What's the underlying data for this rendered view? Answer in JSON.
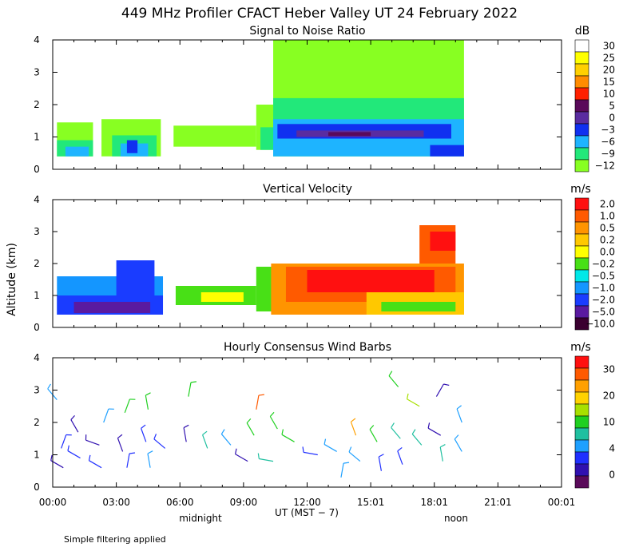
{
  "figure": {
    "title": "449 MHz Profiler CFACT Heber Valley UT 24 February 2022",
    "ylabel": "Altitude (km)",
    "xlabel": "UT  (MST − 7)",
    "midnight_label": "midnight",
    "noon_label": "noon",
    "footnote": "Simple filtering applied"
  },
  "chart_data": [
    {
      "type": "heatmap",
      "title": "Signal to Noise Ratio",
      "units": "dB",
      "x_ticks": [
        "00:00",
        "03:00",
        "06:00",
        "09:00",
        "12:00",
        "15:01",
        "18:01",
        "21:01",
        "00:01"
      ],
      "y_ticks": [
        "0",
        "1",
        "2",
        "3",
        "4"
      ],
      "ylim": [
        0,
        4
      ],
      "xlim_hours": [
        0,
        24
      ],
      "colorbar": {
        "labels": [
          "30",
          "25",
          "20",
          "15",
          "10",
          "5",
          "0",
          "−3",
          "−6",
          "−9",
          "−12"
        ],
        "colors": [
          "#ffffff",
          "#ffff00",
          "#ffd000",
          "#ff8c00",
          "#ff2000",
          "#5a0a5a",
          "#5a2ca0",
          "#1030f0",
          "#1eb4ff",
          "#22e87a",
          "#88ff22"
        ]
      },
      "blocks": [
        {
          "t0": 0.2,
          "t1": 1.9,
          "z0": 0.4,
          "z1": 1.45,
          "c": "#88ff22"
        },
        {
          "t0": 0.2,
          "t1": 1.9,
          "z0": 0.4,
          "z1": 0.9,
          "c": "#22e87a"
        },
        {
          "t0": 0.6,
          "t1": 1.7,
          "z0": 0.4,
          "z1": 0.7,
          "c": "#1eb4ff"
        },
        {
          "t0": 2.3,
          "t1": 5.1,
          "z0": 0.4,
          "z1": 1.55,
          "c": "#88ff22"
        },
        {
          "t0": 2.8,
          "t1": 4.9,
          "z0": 0.4,
          "z1": 1.05,
          "c": "#22e87a"
        },
        {
          "t0": 3.2,
          "t1": 4.5,
          "z0": 0.4,
          "z1": 0.8,
          "c": "#1eb4ff"
        },
        {
          "t0": 3.5,
          "t1": 4.0,
          "z0": 0.5,
          "z1": 0.9,
          "c": "#1030f0"
        },
        {
          "t0": 5.7,
          "t1": 9.6,
          "z0": 0.7,
          "z1": 1.35,
          "c": "#88ff22"
        },
        {
          "t0": 9.6,
          "t1": 10.4,
          "z0": 0.6,
          "z1": 2.0,
          "c": "#88ff22"
        },
        {
          "t0": 9.8,
          "t1": 10.4,
          "z0": 0.6,
          "z1": 1.3,
          "c": "#22e87a"
        },
        {
          "t0": 10.4,
          "t1": 19.4,
          "z0": 0.4,
          "z1": 4.0,
          "c": "#88ff22"
        },
        {
          "t0": 10.4,
          "t1": 19.4,
          "z0": 0.4,
          "z1": 2.2,
          "c": "#22e87a"
        },
        {
          "t0": 10.4,
          "t1": 19.4,
          "z0": 0.4,
          "z1": 1.55,
          "c": "#1eb4ff"
        },
        {
          "t0": 10.6,
          "t1": 18.8,
          "z0": 0.95,
          "z1": 1.4,
          "c": "#1030f0"
        },
        {
          "t0": 11.5,
          "t1": 17.5,
          "z0": 1.0,
          "z1": 1.2,
          "c": "#5a2ca0"
        },
        {
          "t0": 13.0,
          "t1": 15.0,
          "z0": 1.03,
          "z1": 1.15,
          "c": "#5a0a5a"
        },
        {
          "t0": 17.8,
          "t1": 19.4,
          "z0": 0.4,
          "z1": 0.75,
          "c": "#1030f0"
        }
      ]
    },
    {
      "type": "heatmap",
      "title": "Vertical Velocity",
      "units": "m/s",
      "x_ticks": [
        "00:00",
        "03:00",
        "06:00",
        "09:00",
        "12:00",
        "15:01",
        "18:01",
        "21:01",
        "00:01"
      ],
      "y_ticks": [
        "0",
        "1",
        "2",
        "3",
        "4"
      ],
      "ylim": [
        0,
        4
      ],
      "xlim_hours": [
        0,
        24
      ],
      "colorbar": {
        "labels": [
          "2.0",
          "1.0",
          "0.5",
          "0.2",
          "0.0",
          "−0.2",
          "−0.5",
          "−1.0",
          "−2.0",
          "−5.0",
          "−10.0"
        ],
        "colors": [
          "#ff1010",
          "#ff5a00",
          "#ff9400",
          "#ffc800",
          "#ffff00",
          "#48e016",
          "#00e8e8",
          "#1496ff",
          "#1a3cff",
          "#5a1aa0",
          "#3a0030"
        ]
      },
      "blocks": [
        {
          "t0": 0.2,
          "t1": 5.2,
          "z0": 0.4,
          "z1": 1.6,
          "c": "#1496ff"
        },
        {
          "t0": 0.2,
          "t1": 5.2,
          "z0": 0.4,
          "z1": 1.0,
          "c": "#1a3cff"
        },
        {
          "t0": 1.0,
          "t1": 4.6,
          "z0": 0.45,
          "z1": 0.8,
          "c": "#5a1aa0"
        },
        {
          "t0": 3.0,
          "t1": 4.8,
          "z0": 1.0,
          "z1": 2.1,
          "c": "#1a3cff"
        },
        {
          "t0": 5.8,
          "t1": 9.6,
          "z0": 0.7,
          "z1": 1.3,
          "c": "#48e016"
        },
        {
          "t0": 7.0,
          "t1": 9.0,
          "z0": 0.8,
          "z1": 1.1,
          "c": "#ffff00"
        },
        {
          "t0": 9.6,
          "t1": 10.6,
          "z0": 0.5,
          "z1": 1.9,
          "c": "#48e016"
        },
        {
          "t0": 10.3,
          "t1": 19.4,
          "z0": 0.4,
          "z1": 2.0,
          "c": "#ff9400"
        },
        {
          "t0": 11.0,
          "t1": 19.0,
          "z0": 0.8,
          "z1": 1.9,
          "c": "#ff5a00"
        },
        {
          "t0": 12.0,
          "t1": 18.0,
          "z0": 1.1,
          "z1": 1.8,
          "c": "#ff1010"
        },
        {
          "t0": 14.8,
          "t1": 19.4,
          "z0": 0.4,
          "z1": 1.1,
          "c": "#ffc800"
        },
        {
          "t0": 15.5,
          "t1": 19.0,
          "z0": 0.5,
          "z1": 0.8,
          "c": "#48e016"
        },
        {
          "t0": 17.3,
          "t1": 19.0,
          "z0": 2.0,
          "z1": 3.2,
          "c": "#ff5a00"
        },
        {
          "t0": 17.8,
          "t1": 19.0,
          "z0": 2.4,
          "z1": 3.0,
          "c": "#ff1010"
        }
      ]
    },
    {
      "type": "barbs",
      "title": "Hourly Consensus Wind Barbs",
      "units": "m/s",
      "x_ticks": [
        "00:00",
        "03:00",
        "06:00",
        "09:00",
        "12:00",
        "15:01",
        "18:01",
        "21:01",
        "00:01"
      ],
      "y_ticks": [
        "0",
        "1",
        "2",
        "3",
        "4"
      ],
      "ylim": [
        0,
        4
      ],
      "xlim_hours": [
        0,
        24
      ],
      "colorbar": {
        "labels": [
          "30",
          "20",
          "10",
          "4",
          "0"
        ],
        "colors": [
          "#ff1010",
          "#ff5a00",
          "#ffa000",
          "#ffd200",
          "#a8e000",
          "#20d020",
          "#20c0a0",
          "#1ea0ff",
          "#2030ff",
          "#3010b0",
          "#5a0a5a"
        ]
      },
      "barbs": [
        {
          "t": 0.2,
          "z": 2.7,
          "dir": 320,
          "c": "#1ea0ff"
        },
        {
          "t": 0.4,
          "z": 1.2,
          "dir": 20,
          "c": "#2030ff"
        },
        {
          "t": 0.5,
          "z": 0.6,
          "dir": 300,
          "c": "#3010b0"
        },
        {
          "t": 1.2,
          "z": 1.7,
          "dir": 330,
          "c": "#3010b0"
        },
        {
          "t": 1.3,
          "z": 0.9,
          "dir": 300,
          "c": "#2030ff"
        },
        {
          "t": 2.2,
          "z": 1.3,
          "dir": 290,
          "c": "#3010b0"
        },
        {
          "t": 2.3,
          "z": 0.6,
          "dir": 300,
          "c": "#2030ff"
        },
        {
          "t": 2.4,
          "z": 2.0,
          "dir": 20,
          "c": "#1ea0ff"
        },
        {
          "t": 3.3,
          "z": 1.1,
          "dir": 340,
          "c": "#3010b0"
        },
        {
          "t": 3.4,
          "z": 2.3,
          "dir": 20,
          "c": "#20d020"
        },
        {
          "t": 3.5,
          "z": 0.6,
          "dir": 10,
          "c": "#2030ff"
        },
        {
          "t": 4.4,
          "z": 1.4,
          "dir": 340,
          "c": "#2030ff"
        },
        {
          "t": 4.5,
          "z": 2.4,
          "dir": 350,
          "c": "#20d020"
        },
        {
          "t": 4.6,
          "z": 0.6,
          "dir": 350,
          "c": "#1ea0ff"
        },
        {
          "t": 5.3,
          "z": 1.2,
          "dir": 310,
          "c": "#2030ff"
        },
        {
          "t": 6.3,
          "z": 1.4,
          "dir": 350,
          "c": "#3010b0"
        },
        {
          "t": 6.4,
          "z": 2.8,
          "dir": 10,
          "c": "#20d020"
        },
        {
          "t": 7.3,
          "z": 1.2,
          "dir": 340,
          "c": "#20c0a0"
        },
        {
          "t": 8.4,
          "z": 1.3,
          "dir": 320,
          "c": "#1ea0ff"
        },
        {
          "t": 9.2,
          "z": 0.8,
          "dir": 300,
          "c": "#3010b0"
        },
        {
          "t": 9.6,
          "z": 2.4,
          "dir": 10,
          "c": "#ff5a00"
        },
        {
          "t": 9.5,
          "z": 1.6,
          "dir": 330,
          "c": "#20d020"
        },
        {
          "t": 10.4,
          "z": 0.8,
          "dir": 280,
          "c": "#20c0a0"
        },
        {
          "t": 10.6,
          "z": 1.8,
          "dir": 330,
          "c": "#20d020"
        },
        {
          "t": 11.4,
          "z": 1.4,
          "dir": 300,
          "c": "#20d020"
        },
        {
          "t": 12.5,
          "z": 1.0,
          "dir": 280,
          "c": "#2030ff"
        },
        {
          "t": 13.4,
          "z": 1.1,
          "dir": 300,
          "c": "#1ea0ff"
        },
        {
          "t": 13.6,
          "z": 0.3,
          "dir": 10,
          "c": "#1ea0ff"
        },
        {
          "t": 14.3,
          "z": 1.6,
          "dir": 340,
          "c": "#ffa000"
        },
        {
          "t": 14.5,
          "z": 0.8,
          "dir": 310,
          "c": "#1ea0ff"
        },
        {
          "t": 15.3,
          "z": 1.4,
          "dir": 330,
          "c": "#20d020"
        },
        {
          "t": 15.5,
          "z": 0.5,
          "dir": 350,
          "c": "#2030ff"
        },
        {
          "t": 16.3,
          "z": 3.1,
          "dir": 320,
          "c": "#20d020"
        },
        {
          "t": 16.4,
          "z": 1.5,
          "dir": 320,
          "c": "#20c0a0"
        },
        {
          "t": 16.5,
          "z": 0.7,
          "dir": 340,
          "c": "#2030ff"
        },
        {
          "t": 17.3,
          "z": 2.5,
          "dir": 300,
          "c": "#a8e000"
        },
        {
          "t": 17.4,
          "z": 1.3,
          "dir": 320,
          "c": "#20c0a0"
        },
        {
          "t": 18.1,
          "z": 2.8,
          "dir": 30,
          "c": "#3010b0"
        },
        {
          "t": 18.3,
          "z": 1.6,
          "dir": 300,
          "c": "#3010b0"
        },
        {
          "t": 18.4,
          "z": 0.8,
          "dir": 350,
          "c": "#20c0a0"
        },
        {
          "t": 19.3,
          "z": 2.0,
          "dir": 340,
          "c": "#1ea0ff"
        },
        {
          "t": 19.3,
          "z": 1.1,
          "dir": 330,
          "c": "#1ea0ff"
        }
      ]
    }
  ]
}
